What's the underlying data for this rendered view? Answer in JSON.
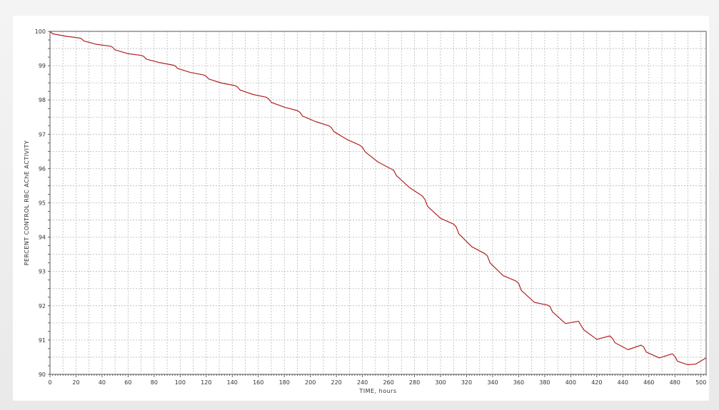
{
  "chart_data": {
    "type": "line",
    "title": "",
    "xlabel": "TIME, hours",
    "ylabel": "PERCENT CONTROL RBC AChE ACTIVITY",
    "xlim": [
      0,
      504
    ],
    "ylim": [
      90,
      100
    ],
    "x_ticks": [
      0,
      20,
      40,
      60,
      80,
      100,
      120,
      140,
      160,
      180,
      200,
      220,
      240,
      260,
      280,
      300,
      320,
      340,
      360,
      380,
      400,
      420,
      440,
      460,
      480,
      500
    ],
    "y_ticks": [
      90,
      91,
      92,
      93,
      94,
      95,
      96,
      97,
      98,
      99,
      100
    ],
    "grid": true,
    "legend": false,
    "line_color": "#b22222",
    "series": [
      {
        "x": [
          0,
          2,
          12,
          22,
          24,
          26,
          36,
          46,
          48,
          50,
          60,
          70,
          72,
          74,
          84,
          94,
          96,
          98,
          108,
          118,
          120,
          122,
          132,
          142,
          144,
          146,
          156,
          166,
          168,
          170,
          180,
          190,
          192,
          194,
          204,
          214,
          216,
          218,
          228,
          238,
          240,
          242,
          252,
          262,
          264,
          266,
          276,
          286,
          288,
          290,
          300,
          310,
          312,
          314,
          324,
          334,
          336,
          338,
          348,
          358,
          360,
          362,
          372,
          382,
          384,
          386,
          396,
          406,
          408,
          410,
          420,
          430,
          432,
          434,
          444,
          454,
          456,
          458,
          468,
          478,
          480,
          482,
          490,
          496,
          504
        ],
        "y": [
          100.0,
          99.93,
          99.86,
          99.81,
          99.79,
          99.72,
          99.62,
          99.57,
          99.54,
          99.46,
          99.35,
          99.3,
          99.27,
          99.19,
          99.09,
          99.02,
          99.0,
          98.92,
          98.8,
          98.73,
          98.69,
          98.61,
          98.49,
          98.42,
          98.38,
          98.29,
          98.16,
          98.08,
          98.03,
          97.93,
          97.79,
          97.69,
          97.64,
          97.53,
          97.37,
          97.25,
          97.2,
          97.08,
          96.85,
          96.68,
          96.62,
          96.49,
          96.19,
          95.99,
          95.95,
          95.8,
          95.45,
          95.2,
          95.1,
          94.9,
          94.55,
          94.38,
          94.3,
          94.1,
          93.72,
          93.52,
          93.45,
          93.25,
          92.88,
          92.72,
          92.65,
          92.45,
          92.1,
          92.02,
          91.98,
          91.82,
          91.48,
          91.55,
          91.42,
          91.3,
          91.02,
          91.12,
          91.05,
          90.92,
          90.72,
          90.85,
          90.8,
          90.65,
          90.48,
          90.6,
          90.52,
          90.38,
          90.28,
          90.3,
          90.48
        ]
      }
    ]
  }
}
